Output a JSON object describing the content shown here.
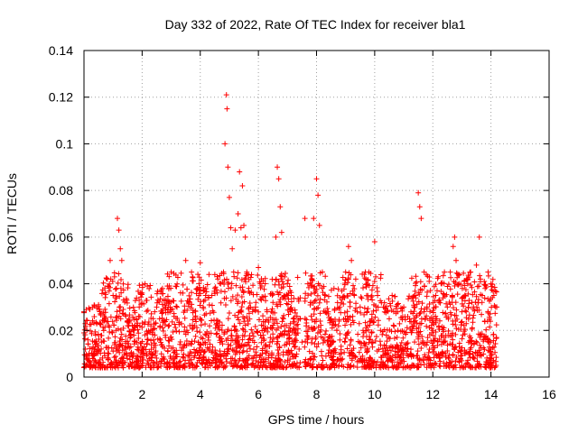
{
  "chart_data": {
    "type": "scatter",
    "title": "Day 332 of 2022, Rate Of TEC Index for receiver bla1",
    "xlabel": "GPS time / hours",
    "ylabel": "ROTI / TECUs",
    "xlim": [
      0,
      16
    ],
    "ylim": [
      0,
      0.14
    ],
    "x_ticks": [
      "0",
      "2",
      "4",
      "6",
      "8",
      "10",
      "12",
      "14",
      "16"
    ],
    "y_ticks": [
      "0",
      "0.02",
      "0.04",
      "0.06",
      "0.08",
      "0.1",
      "0.12",
      "0.14"
    ],
    "grid": true,
    "marker": "plus",
    "color": "#ff0000",
    "data_extent_hours": [
      0,
      14.2
    ],
    "series": [
      {
        "points": [
          [
            0.0,
            0.028
          ],
          [
            0.05,
            0.012
          ],
          [
            0.1,
            0.02
          ],
          [
            0.2,
            0.029
          ],
          [
            0.3,
            0.008
          ],
          [
            0.4,
            0.018
          ],
          [
            0.5,
            0.031
          ],
          [
            0.6,
            0.015
          ],
          [
            0.7,
            0.026
          ],
          [
            0.8,
            0.042
          ],
          [
            0.85,
            0.01
          ],
          [
            0.9,
            0.05
          ],
          [
            1.0,
            0.035
          ],
          [
            1.05,
            0.043
          ],
          [
            1.1,
            0.02
          ],
          [
            1.15,
            0.068
          ],
          [
            1.2,
            0.063
          ],
          [
            1.25,
            0.055
          ],
          [
            1.3,
            0.05
          ],
          [
            1.35,
            0.029
          ],
          [
            1.4,
            0.012
          ],
          [
            1.5,
            0.022
          ],
          [
            1.6,
            0.018
          ],
          [
            1.7,
            0.01
          ],
          [
            1.8,
            0.025
          ],
          [
            1.9,
            0.03
          ],
          [
            2.0,
            0.036
          ],
          [
            2.1,
            0.04
          ],
          [
            2.2,
            0.016
          ],
          [
            2.3,
            0.02
          ],
          [
            2.5,
            0.03
          ],
          [
            2.6,
            0.025
          ],
          [
            2.7,
            0.038
          ],
          [
            2.8,
            0.018
          ],
          [
            2.9,
            0.03
          ],
          [
            3.0,
            0.045
          ],
          [
            3.1,
            0.026
          ],
          [
            3.2,
            0.03
          ],
          [
            3.3,
            0.014
          ],
          [
            3.4,
            0.036
          ],
          [
            3.5,
            0.05
          ],
          [
            3.6,
            0.032
          ],
          [
            3.7,
            0.045
          ],
          [
            3.8,
            0.022
          ],
          [
            3.9,
            0.038
          ],
          [
            4.0,
            0.049
          ],
          [
            4.1,
            0.03
          ],
          [
            4.2,
            0.018
          ],
          [
            4.3,
            0.044
          ],
          [
            4.4,
            0.035
          ],
          [
            4.5,
            0.038
          ],
          [
            4.6,
            0.022
          ],
          [
            4.7,
            0.04
          ],
          [
            4.8,
            0.045
          ],
          [
            4.85,
            0.1
          ],
          [
            4.9,
            0.121
          ],
          [
            4.92,
            0.115
          ],
          [
            4.95,
            0.09
          ],
          [
            5.0,
            0.077
          ],
          [
            5.05,
            0.064
          ],
          [
            5.1,
            0.055
          ],
          [
            5.15,
            0.045
          ],
          [
            5.2,
            0.063
          ],
          [
            5.3,
            0.07
          ],
          [
            5.35,
            0.088
          ],
          [
            5.4,
            0.064
          ],
          [
            5.45,
            0.082
          ],
          [
            5.5,
            0.065
          ],
          [
            5.55,
            0.06
          ],
          [
            5.6,
            0.045
          ],
          [
            5.7,
            0.036
          ],
          [
            5.8,
            0.028
          ],
          [
            5.9,
            0.03
          ],
          [
            6.0,
            0.047
          ],
          [
            6.1,
            0.033
          ],
          [
            6.2,
            0.02
          ],
          [
            6.3,
            0.028
          ],
          [
            6.4,
            0.015
          ],
          [
            6.5,
            0.032
          ],
          [
            6.6,
            0.06
          ],
          [
            6.65,
            0.09
          ],
          [
            6.7,
            0.085
          ],
          [
            6.75,
            0.073
          ],
          [
            6.8,
            0.062
          ],
          [
            6.9,
            0.043
          ],
          [
            7.0,
            0.035
          ],
          [
            7.1,
            0.02
          ],
          [
            7.2,
            0.025
          ],
          [
            7.3,
            0.018
          ],
          [
            7.4,
            0.012
          ],
          [
            7.5,
            0.015
          ],
          [
            7.6,
            0.068
          ],
          [
            7.7,
            0.04
          ],
          [
            7.8,
            0.032
          ],
          [
            7.9,
            0.068
          ],
          [
            8.0,
            0.085
          ],
          [
            8.05,
            0.078
          ],
          [
            8.1,
            0.065
          ],
          [
            8.2,
            0.045
          ],
          [
            8.3,
            0.035
          ],
          [
            8.4,
            0.028
          ],
          [
            8.5,
            0.025
          ],
          [
            8.6,
            0.038
          ],
          [
            8.7,
            0.02
          ],
          [
            8.8,
            0.03
          ],
          [
            9.0,
            0.045
          ],
          [
            9.1,
            0.056
          ],
          [
            9.2,
            0.05
          ],
          [
            9.3,
            0.035
          ],
          [
            9.4,
            0.028
          ],
          [
            9.5,
            0.03
          ],
          [
            9.6,
            0.02
          ],
          [
            9.7,
            0.042
          ],
          [
            9.8,
            0.045
          ],
          [
            9.9,
            0.025
          ],
          [
            10.0,
            0.058
          ],
          [
            10.1,
            0.035
          ],
          [
            10.2,
            0.02
          ],
          [
            10.3,
            0.03
          ],
          [
            10.4,
            0.018
          ],
          [
            10.5,
            0.025
          ],
          [
            10.6,
            0.035
          ],
          [
            10.8,
            0.02
          ],
          [
            11.0,
            0.03
          ],
          [
            11.2,
            0.025
          ],
          [
            11.3,
            0.02
          ],
          [
            11.4,
            0.035
          ],
          [
            11.5,
            0.079
          ],
          [
            11.55,
            0.073
          ],
          [
            11.6,
            0.068
          ],
          [
            11.7,
            0.045
          ],
          [
            11.8,
            0.03
          ],
          [
            11.9,
            0.025
          ],
          [
            12.0,
            0.02
          ],
          [
            12.1,
            0.035
          ],
          [
            12.3,
            0.04
          ],
          [
            12.4,
            0.045
          ],
          [
            12.5,
            0.03
          ],
          [
            12.6,
            0.045
          ],
          [
            12.7,
            0.056
          ],
          [
            12.75,
            0.06
          ],
          [
            12.8,
            0.05
          ],
          [
            12.9,
            0.04
          ],
          [
            13.0,
            0.028
          ],
          [
            13.1,
            0.035
          ],
          [
            13.2,
            0.04
          ],
          [
            13.3,
            0.045
          ],
          [
            13.4,
            0.03
          ],
          [
            13.5,
            0.048
          ],
          [
            13.6,
            0.06
          ],
          [
            13.7,
            0.035
          ],
          [
            13.8,
            0.038
          ],
          [
            13.9,
            0.045
          ],
          [
            14.0,
            0.04
          ],
          [
            14.1,
            0.035
          ],
          [
            14.2,
            0.03
          ]
        ]
      }
    ]
  }
}
